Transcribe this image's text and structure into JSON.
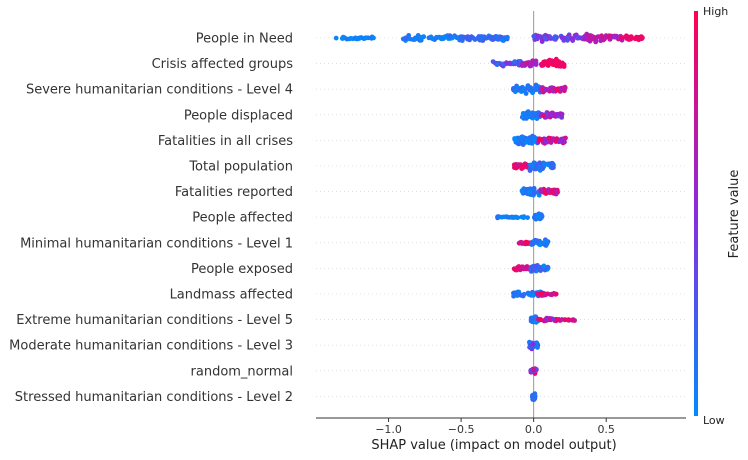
{
  "chart_data": {
    "type": "scatter",
    "subtype": "shap-beeswarm",
    "title": "",
    "xlabel": "SHAP value (impact on model output)",
    "xlim": [
      -1.5,
      1.05
    ],
    "xticks": [
      -1.0,
      -0.5,
      0.0,
      0.5
    ],
    "xtick_labels": [
      "−1.0",
      "−0.5",
      "0.0",
      "0.5"
    ],
    "colorbar": {
      "label": "Feature value",
      "high_label": "High",
      "low_label": "Low",
      "low_color": "#008bfb",
      "high_color": "#ff0052"
    },
    "zero_line": true,
    "features": [
      {
        "name": "People in Need",
        "clusters": [
          {
            "xmin": -1.4,
            "xmax": -1.05,
            "lo": 0.0,
            "hi": 0.1,
            "n": 26,
            "spread": 4
          },
          {
            "xmin": -0.9,
            "xmax": -0.5,
            "lo": 0.0,
            "hi": 0.2,
            "n": 55,
            "spread": 7
          },
          {
            "xmin": -0.5,
            "xmax": -0.18,
            "lo": 0.05,
            "hi": 0.3,
            "n": 60,
            "spread": 8
          },
          {
            "xmin": 0.0,
            "xmax": 0.4,
            "lo": 0.25,
            "hi": 0.6,
            "n": 70,
            "spread": 10
          },
          {
            "xmin": 0.35,
            "xmax": 0.62,
            "lo": 0.55,
            "hi": 0.85,
            "n": 50,
            "spread": 9
          },
          {
            "xmin": 0.6,
            "xmax": 0.75,
            "lo": 0.85,
            "hi": 1.0,
            "n": 25,
            "spread": 6
          }
        ]
      },
      {
        "name": "Crisis affected groups",
        "clusters": [
          {
            "xmin": -0.28,
            "xmax": -0.08,
            "lo": 0.15,
            "hi": 0.5,
            "n": 30,
            "spread": 6
          },
          {
            "xmin": -0.08,
            "xmax": 0.02,
            "lo": 0.5,
            "hi": 0.75,
            "n": 25,
            "spread": 8
          },
          {
            "xmin": 0.05,
            "xmax": 0.22,
            "lo": 0.88,
            "hi": 1.0,
            "n": 45,
            "spread": 11
          }
        ]
      },
      {
        "name": "Severe humanitarian conditions - Level 4",
        "clusters": [
          {
            "xmin": -0.14,
            "xmax": 0.05,
            "lo": 0.0,
            "hi": 0.2,
            "n": 55,
            "spread": 10
          },
          {
            "xmin": 0.05,
            "xmax": 0.22,
            "lo": 0.5,
            "hi": 1.0,
            "n": 45,
            "spread": 8
          }
        ]
      },
      {
        "name": "People displaced",
        "clusters": [
          {
            "xmin": -0.08,
            "xmax": 0.05,
            "lo": 0.0,
            "hi": 0.2,
            "n": 50,
            "spread": 10
          },
          {
            "xmin": 0.05,
            "xmax": 0.2,
            "lo": 0.35,
            "hi": 0.9,
            "n": 40,
            "spread": 7
          }
        ]
      },
      {
        "name": "Fatalities in all crises",
        "clusters": [
          {
            "xmin": -0.14,
            "xmax": 0.03,
            "lo": 0.0,
            "hi": 0.2,
            "n": 60,
            "spread": 12
          },
          {
            "xmin": 0.03,
            "xmax": 0.22,
            "lo": 0.45,
            "hi": 1.0,
            "n": 45,
            "spread": 8
          }
        ]
      },
      {
        "name": "Total population",
        "clusters": [
          {
            "xmin": -0.14,
            "xmax": -0.03,
            "lo": 0.75,
            "hi": 1.0,
            "n": 30,
            "spread": 6
          },
          {
            "xmin": -0.03,
            "xmax": 0.14,
            "lo": 0.0,
            "hi": 0.3,
            "n": 55,
            "spread": 11
          }
        ]
      },
      {
        "name": "Fatalities reported",
        "clusters": [
          {
            "xmin": -0.08,
            "xmax": 0.04,
            "lo": 0.0,
            "hi": 0.2,
            "n": 40,
            "spread": 9
          },
          {
            "xmin": 0.04,
            "xmax": 0.17,
            "lo": 0.6,
            "hi": 1.0,
            "n": 40,
            "spread": 6
          }
        ]
      },
      {
        "name": "People affected",
        "clusters": [
          {
            "xmin": -0.25,
            "xmax": 0.0,
            "lo": 0.0,
            "hi": 0.15,
            "n": 24,
            "spread": 2
          },
          {
            "xmin": 0.0,
            "xmax": 0.06,
            "lo": 0.0,
            "hi": 0.2,
            "n": 25,
            "spread": 8
          }
        ]
      },
      {
        "name": "Minimal humanitarian conditions - Level 1",
        "clusters": [
          {
            "xmin": -0.1,
            "xmax": -0.02,
            "lo": 0.75,
            "hi": 1.0,
            "n": 20,
            "spread": 4
          },
          {
            "xmin": -0.02,
            "xmax": 0.1,
            "lo": 0.0,
            "hi": 0.25,
            "n": 35,
            "spread": 9
          }
        ]
      },
      {
        "name": "People exposed",
        "clusters": [
          {
            "xmin": -0.14,
            "xmax": -0.02,
            "lo": 0.7,
            "hi": 1.0,
            "n": 30,
            "spread": 6
          },
          {
            "xmin": -0.02,
            "xmax": 0.1,
            "lo": 0.0,
            "hi": 0.3,
            "n": 45,
            "spread": 10
          }
        ]
      },
      {
        "name": "Landmass affected",
        "clusters": [
          {
            "xmin": -0.14,
            "xmax": 0.06,
            "lo": 0.0,
            "hi": 0.2,
            "n": 45,
            "spread": 8
          },
          {
            "xmin": 0.02,
            "xmax": 0.16,
            "lo": 0.75,
            "hi": 1.0,
            "n": 20,
            "spread": 4
          }
        ]
      },
      {
        "name": "Extreme humanitarian conditions - Level 5",
        "clusters": [
          {
            "xmin": -0.02,
            "xmax": 0.03,
            "lo": 0.0,
            "hi": 0.2,
            "n": 40,
            "spread": 8
          },
          {
            "xmin": 0.03,
            "xmax": 0.29,
            "lo": 0.5,
            "hi": 1.0,
            "n": 35,
            "spread": 4
          }
        ]
      },
      {
        "name": "Moderate humanitarian conditions - Level 3",
        "clusters": [
          {
            "xmin": -0.03,
            "xmax": 0.03,
            "lo": 0.0,
            "hi": 0.6,
            "n": 35,
            "spread": 8
          }
        ]
      },
      {
        "name": "random_normal",
        "clusters": [
          {
            "xmin": -0.02,
            "xmax": 0.02,
            "lo": 0.2,
            "hi": 1.0,
            "n": 20,
            "spread": 7
          }
        ]
      },
      {
        "name": "Stressed humanitarian conditions - Level 2",
        "clusters": [
          {
            "xmin": -0.01,
            "xmax": 0.01,
            "lo": 0.0,
            "hi": 0.2,
            "n": 14,
            "spread": 8
          }
        ]
      }
    ]
  }
}
